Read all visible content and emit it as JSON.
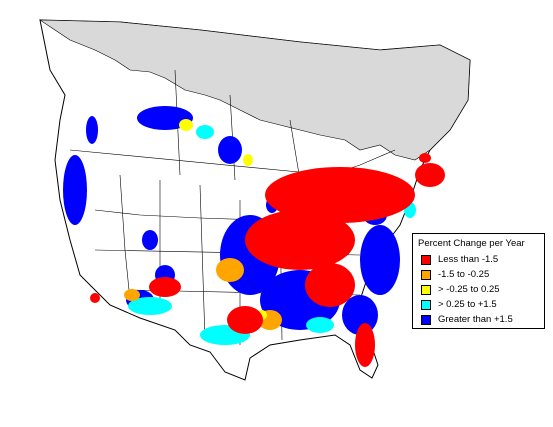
{
  "legend": {
    "title": "Percent Change per Year",
    "items": [
      {
        "label": "Less than -1.5",
        "color": "#ff0000"
      },
      {
        "label": "-1.5 to -0.25",
        "color": "#ffa500"
      },
      {
        "label": "> -0.25 to 0.25",
        "color": "#ffff00"
      },
      {
        "label": "> 0.25 to +1.5",
        "color": "#00ffff"
      },
      {
        "label": "Greater than +1.5",
        "color": "#0000ff"
      }
    ]
  },
  "colors": {
    "ocean": "#ffffff",
    "land_no_data": "#ffffff",
    "arctic_shade": "#d9d9d9",
    "borders": "#000000"
  }
}
